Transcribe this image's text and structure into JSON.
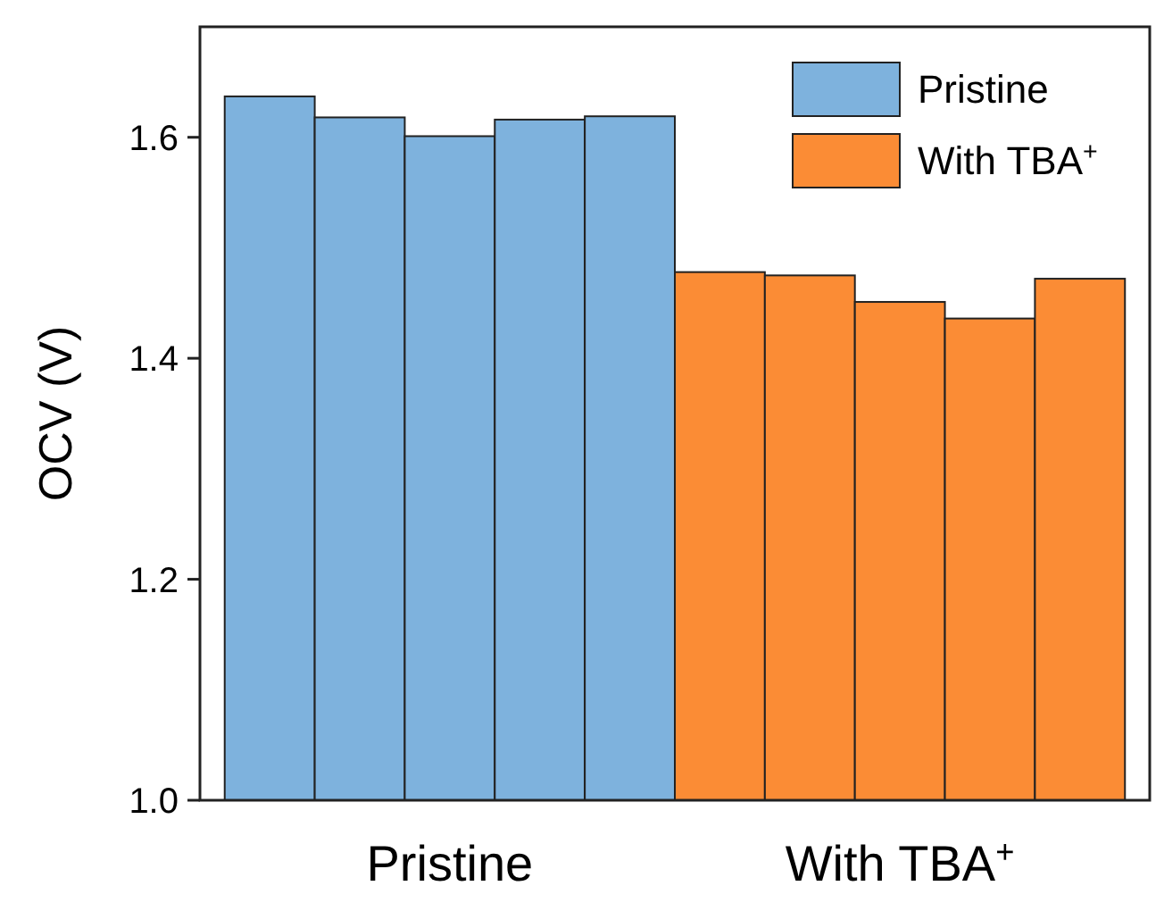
{
  "chart_data": {
    "type": "bar",
    "ylabel": "OCV (V)",
    "categories": [
      "Pristine",
      "With TBA$^{+}$"
    ],
    "series": [
      {
        "colors": [
          "#7eb2dd",
          "#fb8c35"
        ],
        "values": [
          1.637,
          1.478
        ]
      },
      {
        "colors": [
          "#7eb2dd",
          "#fb8c35"
        ],
        "values": [
          1.618,
          1.475
        ]
      },
      {
        "colors": [
          "#7eb2dd",
          "#fb8c35"
        ],
        "values": [
          1.601,
          1.451
        ]
      },
      {
        "colors": [
          "#7eb2dd",
          "#fb8c35"
        ],
        "values": [
          1.616,
          1.436
        ]
      },
      {
        "colors": [
          "#7eb2dd",
          "#fb8c35"
        ],
        "values": [
          1.619,
          1.472
        ]
      }
    ],
    "ylim": [
      1.0,
      1.7
    ],
    "yticks": [
      {
        "value": 1.0,
        "label": "1.0"
      },
      {
        "value": 1.2,
        "label": "1.2"
      },
      {
        "value": 1.4,
        "label": "1.4"
      },
      {
        "value": 1.6,
        "label": "1.6"
      }
    ],
    "grid": false
  }
}
